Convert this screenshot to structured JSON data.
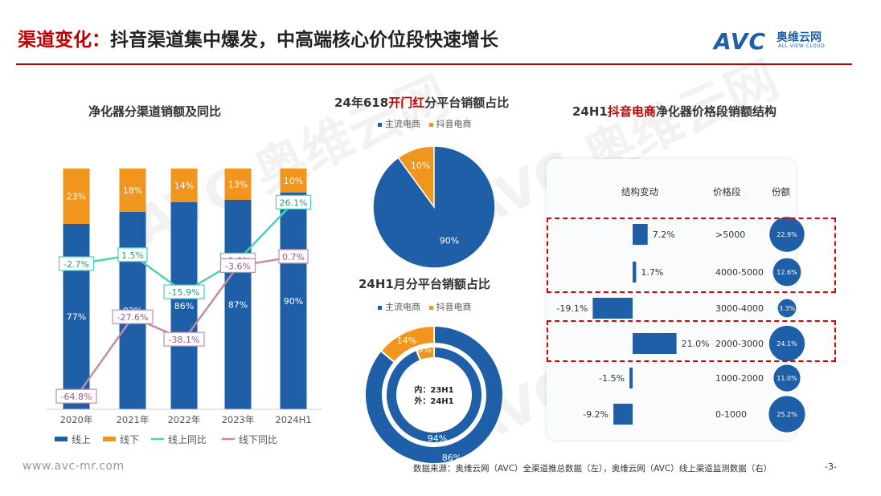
{
  "header": {
    "title_prefix": "渠道变化：",
    "title_main": "抖音渠道集中爆发，中高端核心价位段快速增长",
    "logo_text": "AVC",
    "logo_cn": "奥维云网",
    "logo_en": "ALL VIEW CLOUD"
  },
  "footer": {
    "url": "www.avc-mr.com",
    "source": "数据来源：奥维云网（AVC）全渠道推总数据（左），奥维云网（AVC）线上渠道监测数据（右）",
    "page": "-3-"
  },
  "watermark": {
    "text": "AVC 奥维云网",
    "sub": "ALL VIEW CLOUD"
  },
  "colors": {
    "online": "#1f5fa8",
    "offline": "#f0961e",
    "online_yoy": "#4dd0b3",
    "offline_yoy": "#c48aa8",
    "accent": "#c00000"
  },
  "chart_data": [
    {
      "type": "bar",
      "title": "净化器分渠道销额及同比",
      "stacked": true,
      "percent": true,
      "categories": [
        "2020年",
        "2021年",
        "2022年",
        "2023年",
        "2024H1"
      ],
      "series": [
        {
          "name": "线上",
          "values": [
            77,
            82,
            86,
            87,
            90
          ],
          "labels": [
            "77%",
            "82%",
            "86%",
            "87%",
            "90%"
          ]
        },
        {
          "name": "线下",
          "values": [
            23,
            18,
            14,
            13,
            10
          ],
          "labels": [
            "23%",
            "18%",
            "14%",
            "13%",
            "10%"
          ]
        }
      ],
      "lines": [
        {
          "name": "线上同比",
          "values": [
            -2.7,
            1.5,
            -15.9,
            -1.0,
            26.1
          ],
          "labels": [
            "-2.7%",
            "1.5%",
            "-15.9%",
            "-1.0%",
            "26.1%"
          ]
        },
        {
          "name": "线下同比",
          "values": [
            -64.8,
            -27.6,
            -38.1,
            -3.6,
            0.7
          ],
          "labels": [
            "-64.8%",
            "-27.6%",
            "-38.1%",
            "-3.6%",
            "0.7%"
          ]
        }
      ],
      "legend": [
        "线上",
        "线下",
        "线上同比",
        "线下同比"
      ],
      "legend_position": "bottom"
    },
    {
      "type": "pie",
      "title_parts": [
        "24年618",
        "开门红",
        "分平台销额占比"
      ],
      "legend": [
        "主流电商",
        "抖音电商"
      ],
      "legend_position": "top",
      "slices": [
        {
          "name": "主流电商",
          "value": 90,
          "label": "90%"
        },
        {
          "name": "抖音电商",
          "value": 10,
          "label": "10%"
        }
      ]
    },
    {
      "type": "pie",
      "subtype": "donut",
      "title": "24H1月分平台销额占比",
      "legend": [
        "主流电商",
        "抖音电商"
      ],
      "legend_position": "top",
      "center_label": [
        "内：23H1",
        "外：24H1"
      ],
      "rings": [
        {
          "name": "23H1",
          "slices": [
            {
              "name": "主流电商",
              "value": 94,
              "label": "94%"
            },
            {
              "name": "抖音电商",
              "value": 6,
              "label": "6%"
            }
          ]
        },
        {
          "name": "24H1",
          "slices": [
            {
              "name": "主流电商",
              "value": 86,
              "label": "86%"
            },
            {
              "name": "抖音电商",
              "value": 14,
              "label": "14%"
            }
          ]
        }
      ]
    },
    {
      "type": "bar",
      "orientation": "horizontal",
      "title_parts": [
        "24H1",
        "抖音电商",
        "净化器价格段销额结构"
      ],
      "headers": [
        "结构变动",
        "价格段",
        "份额"
      ],
      "categories": [
        ">5000",
        "4000-5000",
        "3000-4000",
        "2000-3000",
        "1000-2000",
        "0-1000"
      ],
      "change": [
        7.2,
        1.7,
        -19.1,
        21.0,
        -1.5,
        -9.2
      ],
      "change_labels": [
        "7.2%",
        "1.7%",
        "-19.1%",
        "21.0%",
        "-1.5%",
        "-9.2%"
      ],
      "share": [
        22.9,
        12.6,
        3.3,
        24.1,
        11.0,
        25.2
      ],
      "share_labels": [
        "22.9%",
        "12.6%",
        "3.3%",
        "24.1%",
        "11.0%",
        "25.2%"
      ],
      "highlighted": [
        ">5000",
        "4000-5000",
        "2000-3000"
      ]
    }
  ]
}
